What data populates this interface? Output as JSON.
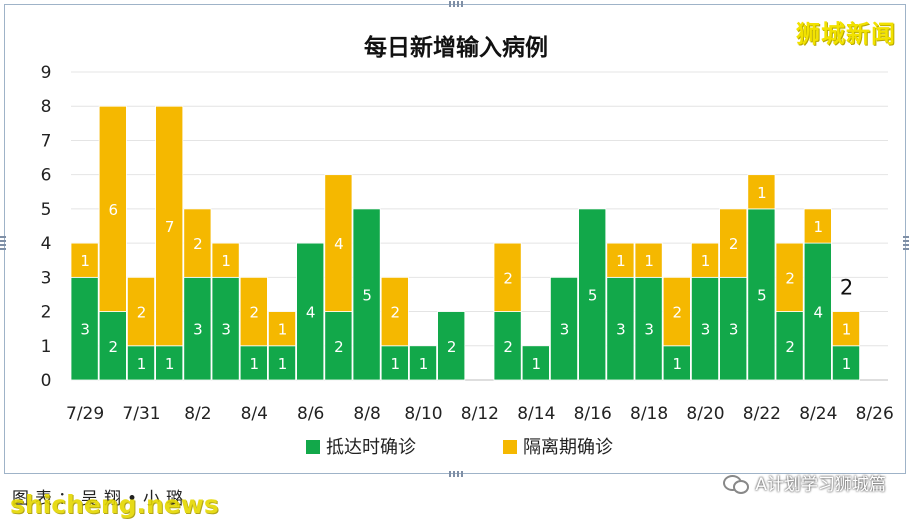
{
  "brand": {
    "text": "狮城新闻"
  },
  "caption": {
    "text": "图表：吴翔•小璐"
  },
  "watermark": {
    "url": "shicheng.news"
  },
  "wechat": {
    "account": "A计划学习狮城篇",
    "icon": "wechat-icon"
  },
  "colors": {
    "local": "#12a84a",
    "quarantine": "#f5b800"
  },
  "chart_data": {
    "type": "bar",
    "stacked": true,
    "title": "每日新增输入病例",
    "xlabel": "",
    "ylabel": "",
    "ylim": [
      0,
      9
    ],
    "yticks": [
      0,
      1,
      2,
      3,
      4,
      5,
      6,
      7,
      8,
      9
    ],
    "grid": true,
    "legend": "bottom",
    "categories": [
      "7/29",
      "7/30",
      "7/31",
      "8/1",
      "8/2",
      "8/3",
      "8/4",
      "8/5",
      "8/6",
      "8/7",
      "8/8",
      "8/9",
      "8/10",
      "8/11",
      "8/12",
      "8/13",
      "8/14",
      "8/15",
      "8/16",
      "8/17",
      "8/18",
      "8/19",
      "8/20",
      "8/21",
      "8/22",
      "8/23",
      "8/24",
      "8/25",
      "8/26"
    ],
    "tick_labels": [
      "7/29",
      "",
      "7/31",
      "",
      "8/2",
      "",
      "8/4",
      "",
      "8/6",
      "",
      "8/8",
      "",
      "8/10",
      "",
      "8/12",
      "",
      "8/14",
      "",
      "8/16",
      "",
      "8/18",
      "",
      "8/20",
      "",
      "8/22",
      "",
      "8/24",
      "",
      "8/26"
    ],
    "series": [
      {
        "name": "抵达时确诊",
        "values": [
          3,
          2,
          1,
          1,
          3,
          3,
          1,
          1,
          4,
          2,
          5,
          1,
          1,
          2,
          0,
          2,
          1,
          3,
          5,
          3,
          3,
          1,
          3,
          3,
          5,
          2,
          4,
          1,
          0
        ]
      },
      {
        "name": "隔离期确诊",
        "values": [
          1,
          6,
          2,
          7,
          2,
          1,
          2,
          1,
          0,
          4,
          0,
          2,
          0,
          0,
          0,
          2,
          0,
          0,
          0,
          1,
          1,
          2,
          1,
          2,
          1,
          2,
          1,
          1,
          0
        ]
      }
    ],
    "annotations": [
      {
        "category": "8/25",
        "text": "2"
      }
    ]
  }
}
